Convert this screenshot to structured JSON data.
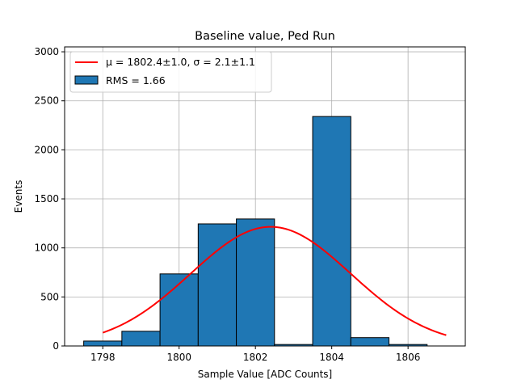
{
  "chart_data": {
    "type": "bar",
    "title": "Baseline value, Ped Run",
    "xlabel": "Sample Value [ADC Counts]",
    "ylabel": "Events",
    "xlim": [
      1797.0,
      1807.5
    ],
    "ylim": [
      0,
      3050
    ],
    "xticks": [
      1798,
      1800,
      1802,
      1804,
      1806
    ],
    "yticks": [
      0,
      500,
      1000,
      1500,
      2000,
      2500,
      3000
    ],
    "grid": true,
    "legend_position": "top-left",
    "series": [
      {
        "name": "RMS = 1.66",
        "kind": "histogram",
        "color": "#1f77b4",
        "edgecolor": "#000000",
        "bins": [
          {
            "left": 1797.5,
            "right": 1798.5,
            "value": 50
          },
          {
            "left": 1798.5,
            "right": 1799.5,
            "value": 150
          },
          {
            "left": 1799.5,
            "right": 1800.5,
            "value": 735
          },
          {
            "left": 1800.5,
            "right": 1801.5,
            "value": 1245
          },
          {
            "left": 1801.5,
            "right": 1802.5,
            "value": 1295
          },
          {
            "left": 1802.5,
            "right": 1803.5,
            "value": 15
          },
          {
            "left": 1803.5,
            "right": 1804.5,
            "value": 2340
          },
          {
            "left": 1804.5,
            "right": 1805.5,
            "value": 85
          },
          {
            "left": 1805.5,
            "right": 1806.5,
            "value": 15
          }
        ]
      },
      {
        "name": "μ = 1802.4±1.0, σ = 2.1±1.1",
        "kind": "gaussian-fit",
        "color": "#ff0000",
        "mu": 1802.4,
        "sigma": 2.1,
        "amplitude": 1215,
        "x_range": [
          1798,
          1807
        ]
      }
    ]
  }
}
